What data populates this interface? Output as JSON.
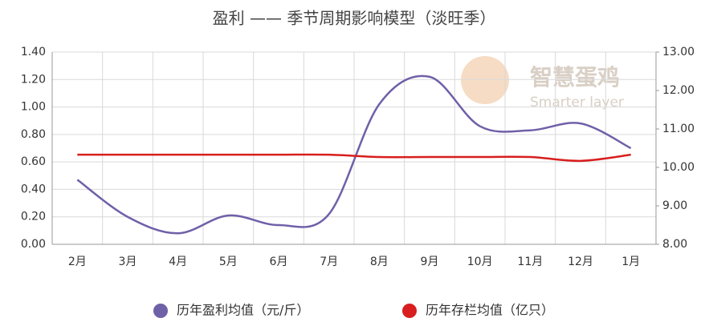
{
  "chart_data": {
    "type": "line",
    "title": "盈利 —— 季节周期影响模型（淡旺季）",
    "watermark": [
      "智慧蛋鸡",
      "Smarter layer"
    ],
    "categories": [
      "2月",
      "3月",
      "4月",
      "5月",
      "6月",
      "7月",
      "8月",
      "9月",
      "10月",
      "11月",
      "12月",
      "1月"
    ],
    "series": [
      {
        "name": "历年盈利均值（元/斤）",
        "color": "#7060a8",
        "values": [
          0.47,
          0.2,
          0.08,
          0.21,
          0.14,
          0.22,
          1.02,
          1.22,
          0.86,
          0.83,
          0.88,
          0.7
        ]
      },
      {
        "name": "历年存栏均值（亿只）",
        "color": "#d81e1e",
        "axis": "y2",
        "values": [
          10.33,
          10.33,
          10.33,
          10.33,
          10.33,
          10.33,
          10.27,
          10.27,
          10.27,
          10.27,
          10.17,
          10.33
        ]
      }
    ],
    "ylim": [
      0,
      1.4
    ],
    "yticks": [
      {
        "value": 0,
        "label": "0.00"
      },
      {
        "value": 0.2,
        "label": "0.20"
      },
      {
        "value": 0.4,
        "label": "0.40"
      },
      {
        "value": 0.6,
        "label": "0.60"
      },
      {
        "value": 0.8,
        "label": "0.80"
      },
      {
        "value": 1.0,
        "label": "1.00"
      },
      {
        "value": 1.2,
        "label": "1.20"
      },
      {
        "value": 1.4,
        "label": "1.40"
      }
    ],
    "y2lim": [
      8,
      13
    ],
    "y2ticks": [
      {
        "value": 8,
        "label": "8.00"
      },
      {
        "value": 9,
        "label": "9.00"
      },
      {
        "value": 10,
        "label": "10.00"
      },
      {
        "value": 11,
        "label": "11.00"
      },
      {
        "value": 12,
        "label": "12.00"
      },
      {
        "value": 13,
        "label": "13.00"
      }
    ],
    "grid": true,
    "legend": "bottom"
  }
}
